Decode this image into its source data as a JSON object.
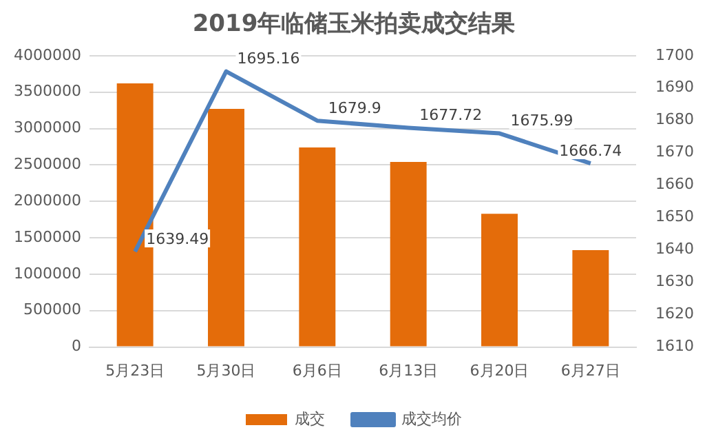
{
  "chart_data": {
    "type": "bar",
    "title": "2019年临储玉米拍卖成交结果",
    "categories": [
      "5月23日",
      "5月30日",
      "6月6日",
      "6月13日",
      "6月20日",
      "6月27日"
    ],
    "series": [
      {
        "name": "成交",
        "color": "#e46c0a",
        "values": [
          3620000,
          3270000,
          2740000,
          2540000,
          1830000,
          1330000
        ]
      },
      {
        "name": "成交均价",
        "type": "line",
        "axis": "y2",
        "color": "#4f81bd",
        "values": [
          1639.49,
          1695.16,
          1679.9,
          1677.72,
          1675.99,
          1666.74
        ],
        "value_labels": [
          "1639.49",
          "1695.16",
          "1679.9",
          "1677.72",
          "1675.99",
          "1666.74"
        ]
      }
    ],
    "ylim": [
      0,
      4000000
    ],
    "yticks": [
      0,
      500000,
      1000000,
      1500000,
      2000000,
      2500000,
      3000000,
      3500000,
      4000000
    ],
    "y2lim": [
      1610,
      1700
    ],
    "y2ticks": [
      1610,
      1620,
      1630,
      1640,
      1650,
      1660,
      1670,
      1680,
      1690,
      1700
    ],
    "grid": "y",
    "legend": "bottom",
    "marker": "none"
  }
}
